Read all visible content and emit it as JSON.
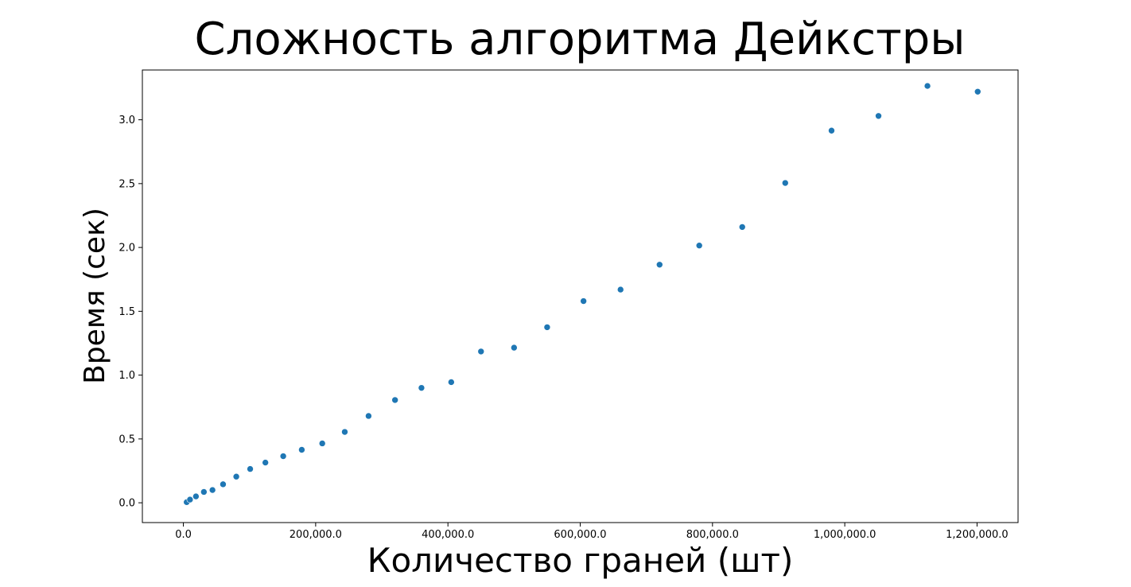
{
  "chart_data": {
    "type": "scatter",
    "title": "Сложность алгоритма Дейкстры",
    "xlabel": "Количество граней (шт)",
    "ylabel": "Время (сек)",
    "xlim": [
      -62000,
      1262000
    ],
    "ylim": [
      -0.155,
      3.39
    ],
    "x_ticks": [
      0,
      200000,
      400000,
      600000,
      800000,
      1000000,
      1200000
    ],
    "x_tick_labels": [
      "0.0",
      "200,000.0",
      "400,000.0",
      "600,000.0",
      "800,000.0",
      "1,000,000.0",
      "1,200,000.0"
    ],
    "y_ticks": [
      0,
      0.5,
      1.0,
      1.5,
      2.0,
      2.5,
      3.0
    ],
    "y_tick_labels": [
      "0.0",
      "0.5",
      "1.0",
      "1.5",
      "2.0",
      "2.5",
      "3.0"
    ],
    "grid": false,
    "color": "#1f77b4",
    "points": [
      {
        "x": 5000,
        "y": 0.005
      },
      {
        "x": 10000,
        "y": 0.025
      },
      {
        "x": 19000,
        "y": 0.05
      },
      {
        "x": 31000,
        "y": 0.085
      },
      {
        "x": 44000,
        "y": 0.1
      },
      {
        "x": 60000,
        "y": 0.145
      },
      {
        "x": 80000,
        "y": 0.205
      },
      {
        "x": 101000,
        "y": 0.265
      },
      {
        "x": 124000,
        "y": 0.315
      },
      {
        "x": 151000,
        "y": 0.365
      },
      {
        "x": 179000,
        "y": 0.415
      },
      {
        "x": 210000,
        "y": 0.465
      },
      {
        "x": 244000,
        "y": 0.555
      },
      {
        "x": 280000,
        "y": 0.68
      },
      {
        "x": 320000,
        "y": 0.805
      },
      {
        "x": 360000,
        "y": 0.9
      },
      {
        "x": 405000,
        "y": 0.945
      },
      {
        "x": 450000,
        "y": 1.185
      },
      {
        "x": 500000,
        "y": 1.215
      },
      {
        "x": 550000,
        "y": 1.375
      },
      {
        "x": 605000,
        "y": 1.58
      },
      {
        "x": 661000,
        "y": 1.67
      },
      {
        "x": 720000,
        "y": 1.865
      },
      {
        "x": 780000,
        "y": 2.015
      },
      {
        "x": 845000,
        "y": 2.16
      },
      {
        "x": 910000,
        "y": 2.505
      },
      {
        "x": 980000,
        "y": 2.915
      },
      {
        "x": 1051000,
        "y": 3.03
      },
      {
        "x": 1125000,
        "y": 3.265
      },
      {
        "x": 1201000,
        "y": 3.22
      }
    ]
  }
}
